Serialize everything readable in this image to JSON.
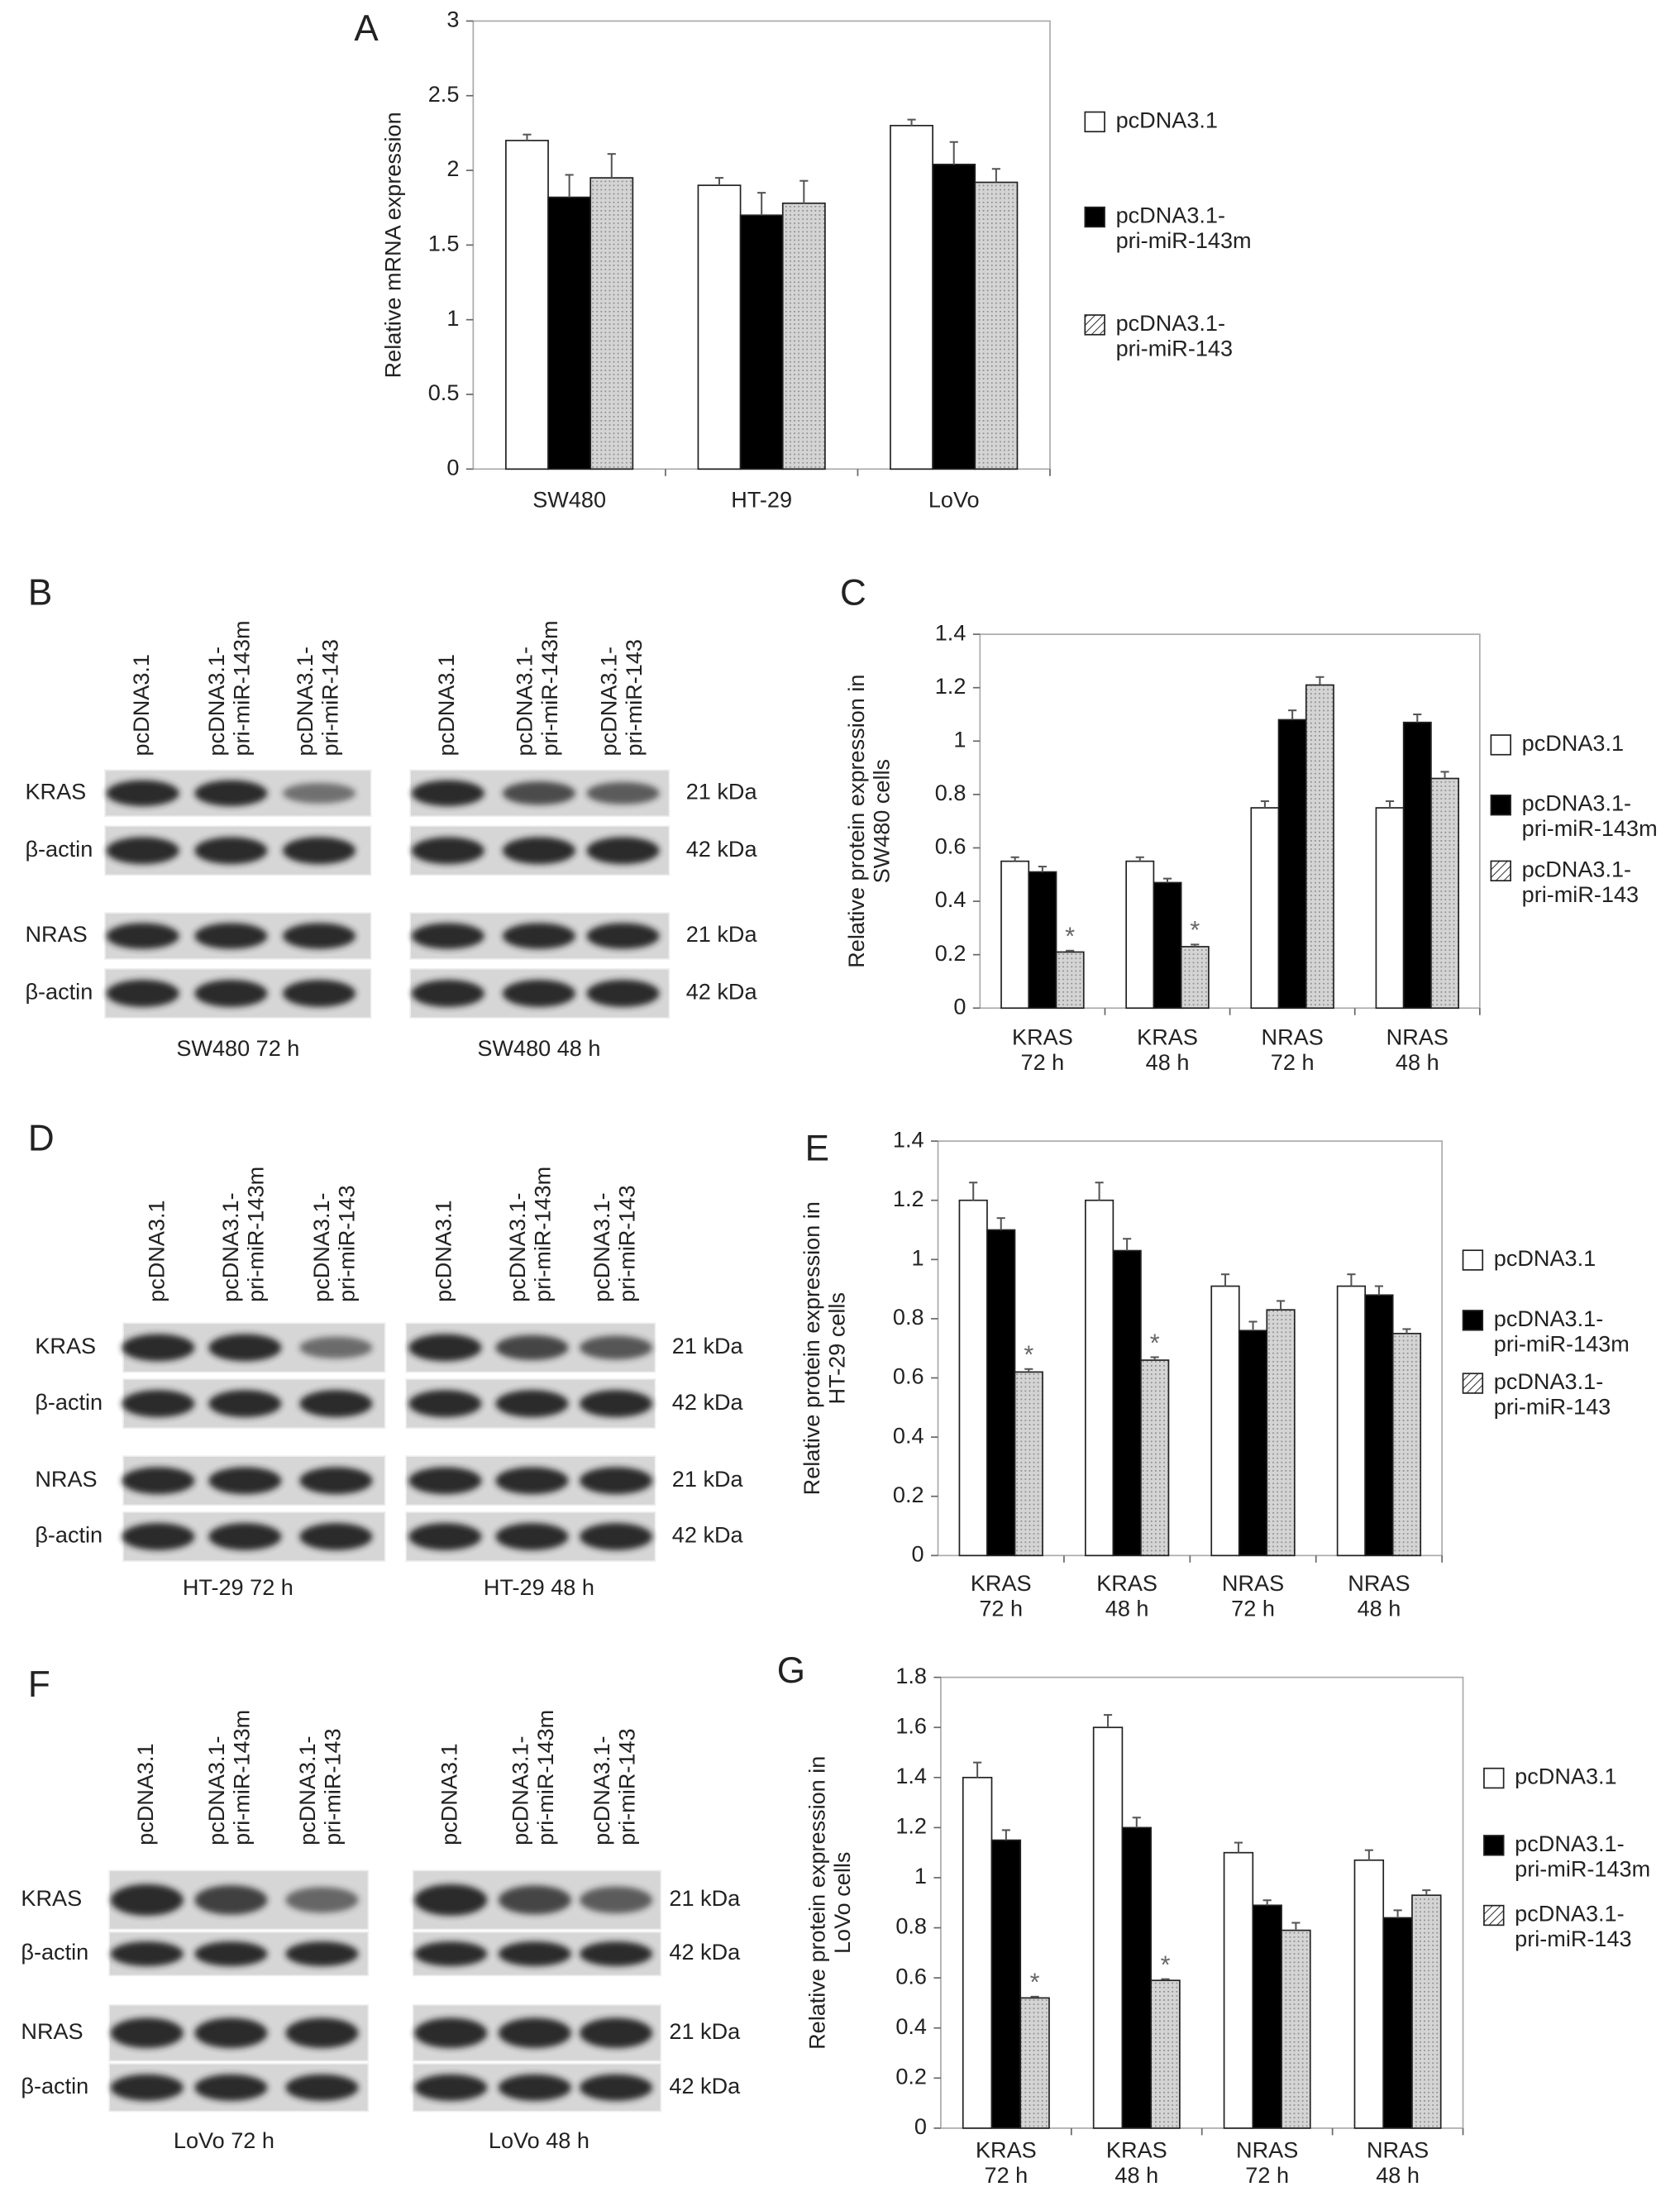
{
  "chart_data": [
    {
      "type": "bar",
      "panel": "A",
      "ylabel": "Relative mRNA expression",
      "categories": [
        "SW480",
        "HT-29",
        "LoVo"
      ],
      "ylim": [
        0,
        3
      ],
      "yticks": [
        0,
        0.5,
        1,
        1.5,
        2,
        2.5,
        3
      ],
      "series": [
        {
          "name": "pcDNA3.1",
          "color": "#ffffff",
          "values": [
            2.2,
            1.9,
            2.3
          ],
          "errors": [
            0.04,
            0.05,
            0.04
          ]
        },
        {
          "name": "pcDNA3.1-\npri-miR-143m",
          "color": "#000000",
          "values": [
            1.82,
            1.7,
            2.04
          ],
          "errors": [
            0.15,
            0.15,
            0.15
          ]
        },
        {
          "name": "pcDNA3.1-\npri-miR-143",
          "color": "#c8c8c8",
          "pattern": "hatch",
          "values": [
            1.95,
            1.78,
            1.92
          ],
          "errors": [
            0.16,
            0.15,
            0.09
          ]
        }
      ]
    },
    {
      "type": "bar",
      "panel": "C",
      "ylabel": "Relative protein expression in\nSW480 cells",
      "categories": [
        "KRAS\n72 h",
        "KRAS\n48 h",
        "NRAS\n72 h",
        "NRAS\n48 h"
      ],
      "ylim": [
        0,
        1.4
      ],
      "yticks": [
        0,
        0.2,
        0.4,
        0.6,
        0.8,
        1,
        1.2,
        1.4
      ],
      "series": [
        {
          "name": "pcDNA3.1",
          "color": "#ffffff",
          "values": [
            0.55,
            0.55,
            0.75,
            0.75
          ],
          "errors": [
            0.015,
            0.015,
            0.025,
            0.025
          ]
        },
        {
          "name": "pcDNA3.1-\npri-miR-143m",
          "color": "#000000",
          "values": [
            0.51,
            0.47,
            1.08,
            1.07
          ],
          "errors": [
            0.02,
            0.015,
            0.035,
            0.03
          ]
        },
        {
          "name": "pcDNA3.1-\npri-miR-143",
          "color": "#c8c8c8",
          "pattern": "hatch",
          "values": [
            0.21,
            0.23,
            1.21,
            0.86
          ],
          "errors": [
            0.005,
            0.008,
            0.03,
            0.025
          ]
        }
      ],
      "annotations": [
        {
          "text": "*",
          "series": 2,
          "category": 0
        },
        {
          "text": "*",
          "series": 2,
          "category": 1
        }
      ]
    },
    {
      "type": "bar",
      "panel": "E",
      "ylabel": "Relative protein expression in\nHT-29 cells",
      "categories": [
        "KRAS\n72 h",
        "KRAS\n48 h",
        "NRAS\n72 h",
        "NRAS\n48 h"
      ],
      "ylim": [
        0,
        1.4
      ],
      "yticks": [
        0,
        0.2,
        0.4,
        0.6,
        0.8,
        1,
        1.2,
        1.4
      ],
      "series": [
        {
          "name": "pcDNA3.1",
          "color": "#ffffff",
          "values": [
            1.2,
            1.2,
            0.91,
            0.91
          ],
          "errors": [
            0.06,
            0.06,
            0.04,
            0.04
          ]
        },
        {
          "name": "pcDNA3.1-\npri-miR-143m",
          "color": "#000000",
          "values": [
            1.1,
            1.03,
            0.76,
            0.88
          ],
          "errors": [
            0.04,
            0.04,
            0.03,
            0.03
          ]
        },
        {
          "name": "pcDNA3.1-\npri-miR-143",
          "color": "#c8c8c8",
          "pattern": "hatch",
          "values": [
            0.62,
            0.66,
            0.83,
            0.75
          ],
          "errors": [
            0.01,
            0.01,
            0.03,
            0.015
          ]
        }
      ],
      "annotations": [
        {
          "text": "*",
          "series": 2,
          "category": 0
        },
        {
          "text": "*",
          "series": 2,
          "category": 1
        }
      ]
    },
    {
      "type": "bar",
      "panel": "G",
      "ylabel": "Relative protein expression in\nLoVo cells",
      "categories": [
        "KRAS\n72 h",
        "KRAS\n48 h",
        "NRAS\n72 h",
        "NRAS\n48 h"
      ],
      "ylim": [
        0,
        1.8
      ],
      "yticks": [
        0,
        0.2,
        0.4,
        0.6,
        0.8,
        1,
        1.2,
        1.4,
        1.6,
        1.8
      ],
      "series": [
        {
          "name": "pcDNA3.1",
          "color": "#ffffff",
          "values": [
            1.4,
            1.6,
            1.1,
            1.07
          ],
          "errors": [
            0.06,
            0.05,
            0.04,
            0.04
          ]
        },
        {
          "name": "pcDNA3.1-\npri-miR-143m",
          "color": "#000000",
          "values": [
            1.15,
            1.2,
            0.89,
            0.84
          ],
          "errors": [
            0.04,
            0.04,
            0.02,
            0.03
          ]
        },
        {
          "name": "pcDNA3.1-\npri-miR-143",
          "color": "#c8c8c8",
          "pattern": "hatch",
          "values": [
            0.52,
            0.59,
            0.79,
            0.93
          ],
          "errors": [
            0.005,
            0.005,
            0.03,
            0.02
          ]
        }
      ],
      "annotations": [
        {
          "text": "*",
          "series": 2,
          "category": 0
        },
        {
          "text": "*",
          "series": 2,
          "category": 1
        }
      ]
    }
  ],
  "blots": [
    {
      "panel": "B",
      "lanes": [
        "pcDNA3.1",
        "pcDNA3.1-\npri-miR-143m",
        "pcDNA3.1-\npri-miR-143"
      ],
      "rows": [
        "KRAS",
        "β-actin",
        "NRAS",
        "β-actin"
      ],
      "sizes": [
        "21 kDa",
        "42 kDa",
        "21 kDa",
        "42 kDa"
      ],
      "captions": [
        "SW480 72 h",
        "SW480 48 h"
      ]
    },
    {
      "panel": "D",
      "lanes": [
        "pcDNA3.1",
        "pcDNA3.1-\npri-miR-143m",
        "pcDNA3.1-\npri-miR-143"
      ],
      "rows": [
        "KRAS",
        "β-actin",
        "NRAS",
        "β-actin"
      ],
      "sizes": [
        "21 kDa",
        "42 kDa",
        "21 kDa",
        "42 kDa"
      ],
      "captions": [
        "HT-29 72 h",
        "HT-29 48 h"
      ]
    },
    {
      "panel": "F",
      "lanes": [
        "pcDNA3.1",
        "pcDNA3.1-\npri-miR-143m",
        "pcDNA3.1-\npri-miR-143"
      ],
      "rows": [
        "KRAS",
        "β-actin",
        "NRAS",
        "β-actin"
      ],
      "sizes": [
        "21 kDa",
        "42 kDa",
        "21 kDa",
        "42 kDa"
      ],
      "captions": [
        "LoVo 72 h",
        "LoVo 48 h"
      ]
    }
  ]
}
